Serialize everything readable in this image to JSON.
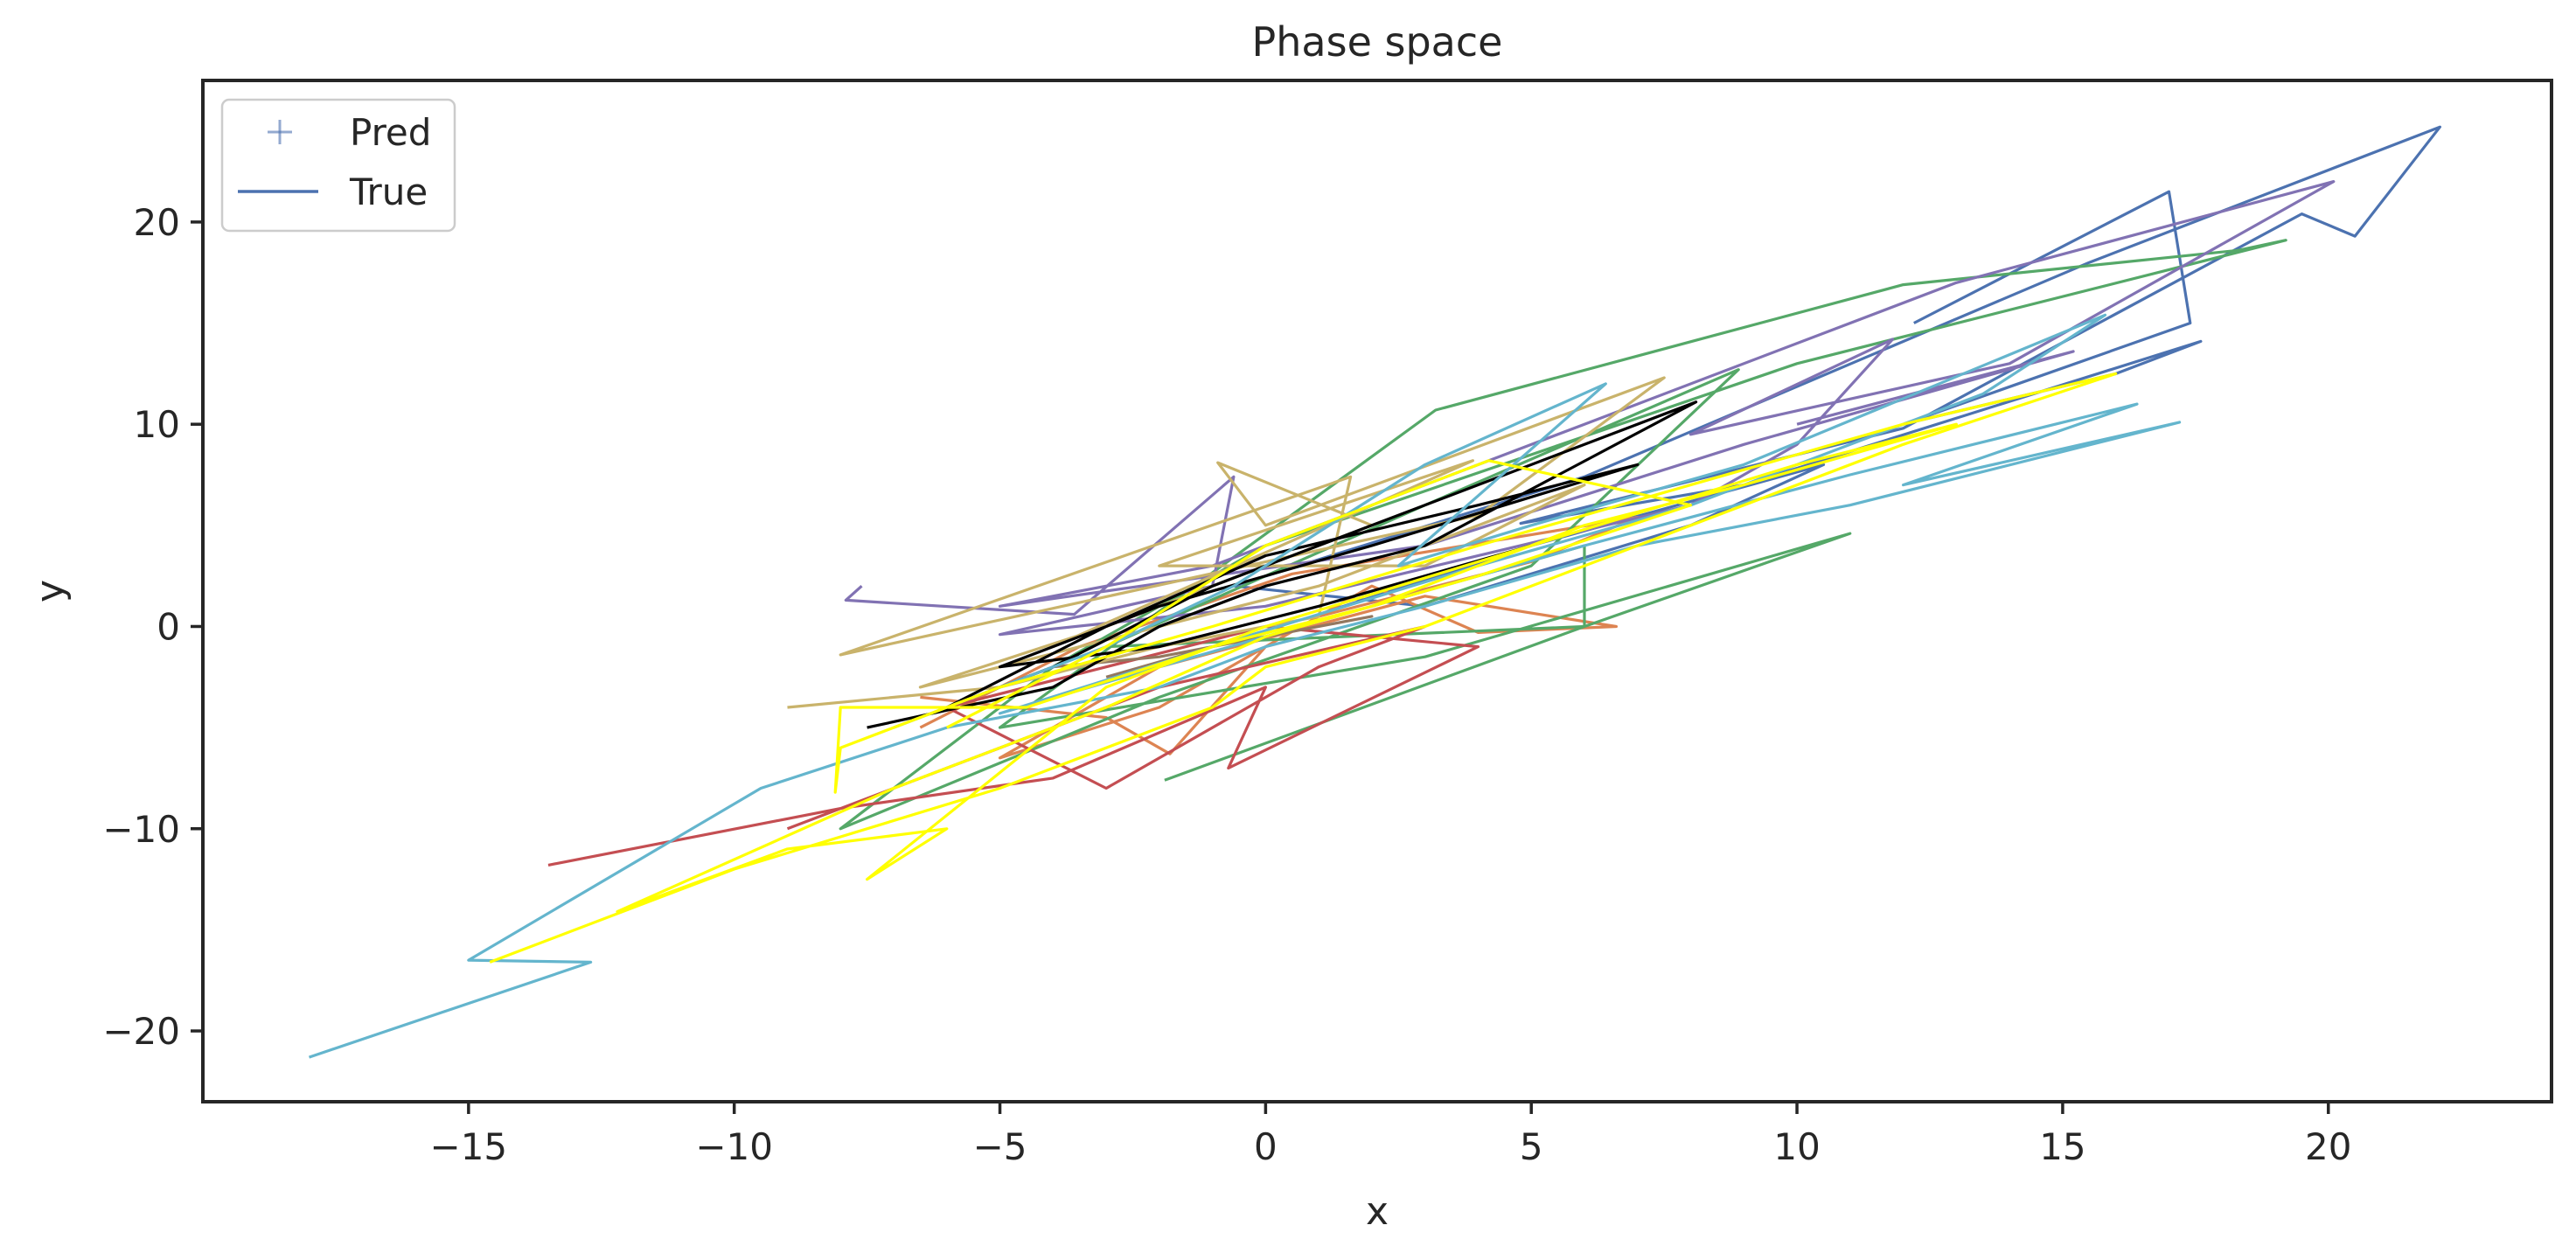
{
  "chart_data": {
    "type": "line",
    "title": "Phase space",
    "xlabel": "x",
    "ylabel": "y",
    "xlim": [
      -20,
      24.2
    ],
    "ylim": [
      -23.5,
      27
    ],
    "xticks": [
      -15,
      -10,
      -5,
      0,
      5,
      10,
      15,
      20
    ],
    "yticks": [
      -20,
      -10,
      0,
      10,
      20
    ],
    "grid": false,
    "legend": {
      "placement": "upper-left",
      "entries": [
        {
          "label": "Pred",
          "marker": "+",
          "color": "#4c72b0"
        },
        {
          "label": "True",
          "marker": "line",
          "color": "#4c72b0"
        }
      ]
    },
    "series": [
      {
        "color": "#4c72b0",
        "points": [
          [
            12.2,
            15
          ],
          [
            17.0,
            21.5
          ],
          [
            17.4,
            15
          ],
          [
            12,
            10
          ],
          [
            16,
            12.5
          ],
          [
            17.6,
            14.1
          ],
          [
            9,
            7
          ],
          [
            4.8,
            5.1
          ],
          [
            12,
            9.8
          ],
          [
            19.5,
            20.4
          ],
          [
            20.5,
            19.3
          ],
          [
            22.1,
            24.7
          ],
          [
            15.5,
            18
          ],
          [
            6,
            7.4
          ],
          [
            -0.6,
            2
          ],
          [
            3,
            1
          ],
          [
            8,
            5
          ],
          [
            10.5,
            8
          ],
          [
            5,
            4
          ],
          [
            1,
            0.6
          ]
        ]
      },
      {
        "color": "#dd8452",
        "points": [
          [
            -6.5,
            -3.5
          ],
          [
            -3,
            -4.5
          ],
          [
            -1.8,
            -6.3
          ],
          [
            0,
            -1
          ],
          [
            2,
            2
          ],
          [
            4,
            -0.3
          ],
          [
            6.6,
            0
          ],
          [
            3,
            1.5
          ],
          [
            -2,
            -2
          ],
          [
            -5,
            -6.5
          ],
          [
            -2,
            -4
          ],
          [
            1,
            0.5
          ],
          [
            5,
            3.2
          ],
          [
            7,
            5.4
          ],
          [
            0.5,
            2.6
          ],
          [
            -3.5,
            -1
          ],
          [
            -6.5,
            -5
          ]
        ]
      },
      {
        "color": "#55a868",
        "points": [
          [
            -1.9,
            -7.6
          ],
          [
            6,
            0
          ],
          [
            11,
            4.6
          ],
          [
            3,
            -1.5
          ],
          [
            -5,
            -5
          ],
          [
            3.2,
            10.7
          ],
          [
            12,
            16.9
          ],
          [
            18.3,
            18.6
          ],
          [
            19.2,
            19.1
          ],
          [
            10,
            13
          ],
          [
            0,
            4
          ],
          [
            -4,
            -2
          ],
          [
            -8,
            -10
          ],
          [
            -2,
            -3.5
          ],
          [
            5,
            3
          ],
          [
            8.9,
            12.7
          ],
          [
            3,
            6
          ],
          [
            -3,
            -1
          ],
          [
            6,
            0
          ],
          [
            6,
            4
          ],
          [
            2,
            1
          ]
        ]
      },
      {
        "color": "#c44e52",
        "points": [
          [
            -13.5,
            -11.8
          ],
          [
            -8,
            -9
          ],
          [
            -4,
            -7.5
          ],
          [
            0,
            -3
          ],
          [
            -0.7,
            -7
          ],
          [
            4,
            -1
          ],
          [
            0,
            0
          ],
          [
            -3,
            -2
          ],
          [
            -6,
            -4
          ],
          [
            -3,
            -8
          ],
          [
            1,
            -2
          ],
          [
            3,
            0
          ],
          [
            -2,
            -3
          ],
          [
            -6,
            -7
          ],
          [
            -9,
            -10
          ]
        ]
      },
      {
        "color": "#8172b3",
        "points": [
          [
            -7.6,
            2
          ],
          [
            -7.9,
            1.3
          ],
          [
            -3.6,
            0.6
          ],
          [
            -0.6,
            7.4
          ],
          [
            -1,
            2
          ],
          [
            -5,
            -0.4
          ],
          [
            0,
            1
          ],
          [
            8,
            6
          ],
          [
            10,
            9
          ],
          [
            11.8,
            14.2
          ],
          [
            8,
            9.5
          ],
          [
            14,
            13
          ],
          [
            20.1,
            22
          ],
          [
            13,
            17
          ],
          [
            6,
            10
          ],
          [
            -1,
            3
          ],
          [
            -5,
            1
          ],
          [
            3,
            4
          ],
          [
            9,
            9
          ],
          [
            15.2,
            13.6
          ],
          [
            10,
            10
          ]
        ]
      },
      {
        "color": "#937860",
        "points": [
          [
            -4,
            -2
          ],
          [
            -2,
            -1.5
          ],
          [
            0,
            -0.5
          ],
          [
            2,
            0.5
          ],
          [
            -1,
            -1
          ],
          [
            -3,
            -2.5
          ]
        ]
      },
      {
        "color": "#c9b36b",
        "points": [
          [
            -9,
            -4
          ],
          [
            -5,
            -3
          ],
          [
            -2,
            -1
          ],
          [
            1,
            0.5
          ],
          [
            1.6,
            7.4
          ],
          [
            -8,
            -1.4
          ],
          [
            4,
            5.5
          ],
          [
            7.5,
            12.3
          ],
          [
            0,
            5
          ],
          [
            -0.9,
            8.1
          ],
          [
            2,
            5
          ],
          [
            -3,
            0
          ],
          [
            -6.5,
            -3
          ],
          [
            1,
            2
          ],
          [
            6,
            7
          ],
          [
            3,
            3
          ],
          [
            -2,
            3
          ],
          [
            3.9,
            8.2
          ],
          [
            -4,
            -1
          ]
        ]
      },
      {
        "color": "#000000",
        "points": [
          [
            -7.5,
            -5
          ],
          [
            -4,
            -3
          ],
          [
            -2,
            0
          ],
          [
            0,
            2
          ],
          [
            3,
            4
          ],
          [
            8.1,
            11.1
          ],
          [
            2,
            5
          ],
          [
            -1,
            2
          ],
          [
            -4,
            -2
          ],
          [
            -6,
            -4
          ],
          [
            -3,
            0
          ],
          [
            0,
            3.5
          ],
          [
            4,
            6
          ],
          [
            7,
            8
          ],
          [
            2,
            4
          ],
          [
            -2,
            1
          ],
          [
            -5,
            -2
          ],
          [
            -2,
            -1
          ],
          [
            1,
            1
          ],
          [
            5,
            4
          ]
        ]
      },
      {
        "color": "#64b5cd",
        "points": [
          [
            -18,
            -21.3
          ],
          [
            -12.7,
            -16.6
          ],
          [
            -15,
            -16.5
          ],
          [
            -9.5,
            -8
          ],
          [
            -6,
            -5
          ],
          [
            -2,
            -3
          ],
          [
            0,
            -1
          ],
          [
            3,
            1
          ],
          [
            7,
            4
          ],
          [
            11,
            6
          ],
          [
            17.2,
            10.1
          ],
          [
            12,
            7
          ],
          [
            16.4,
            11
          ],
          [
            11,
            7.5
          ],
          [
            6,
            4
          ],
          [
            2,
            1
          ],
          [
            -2,
            -2
          ],
          [
            -5,
            -4.3
          ],
          [
            -1,
            -1
          ],
          [
            4,
            3
          ],
          [
            8,
            6
          ],
          [
            13.5,
            11.5
          ],
          [
            15.8,
            15.4
          ],
          [
            9,
            8
          ],
          [
            5,
            5
          ],
          [
            2.5,
            3
          ],
          [
            6.4,
            12
          ],
          [
            3,
            8
          ],
          [
            -0.6,
            2
          ],
          [
            -3,
            -1
          ],
          [
            -7,
            -5
          ]
        ]
      },
      {
        "color": "#ffff00",
        "points": [
          [
            -14.6,
            -16.6
          ],
          [
            -10,
            -12
          ],
          [
            -5,
            -8
          ],
          [
            -1,
            -4
          ],
          [
            0,
            -2
          ],
          [
            3,
            0
          ],
          [
            7,
            4
          ],
          [
            12,
            9
          ],
          [
            16,
            12.5
          ],
          [
            12,
            10
          ],
          [
            8,
            7
          ],
          [
            4,
            4
          ],
          [
            -1,
            0
          ],
          [
            -5,
            -3
          ],
          [
            -8,
            -6
          ],
          [
            -8.1,
            -8.2
          ],
          [
            -8,
            -4
          ],
          [
            -4.5,
            -4
          ],
          [
            -1,
            -1
          ],
          [
            2,
            1
          ],
          [
            6,
            5
          ],
          [
            9,
            7
          ],
          [
            13,
            10
          ],
          [
            10,
            8
          ],
          [
            5,
            4
          ],
          [
            0,
            0
          ],
          [
            -3,
            -3
          ],
          [
            -7.5,
            -12.5
          ],
          [
            -6,
            -10
          ],
          [
            -9,
            -11
          ],
          [
            -12.2,
            -14.1
          ],
          [
            -7,
            -8
          ],
          [
            -3,
            -4
          ],
          [
            0,
            -0.5
          ],
          [
            4,
            2.5
          ],
          [
            8,
            6
          ],
          [
            4.2,
            8.2
          ],
          [
            0,
            4
          ],
          [
            -3,
            -1
          ],
          [
            -6,
            -5
          ]
        ]
      }
    ]
  }
}
